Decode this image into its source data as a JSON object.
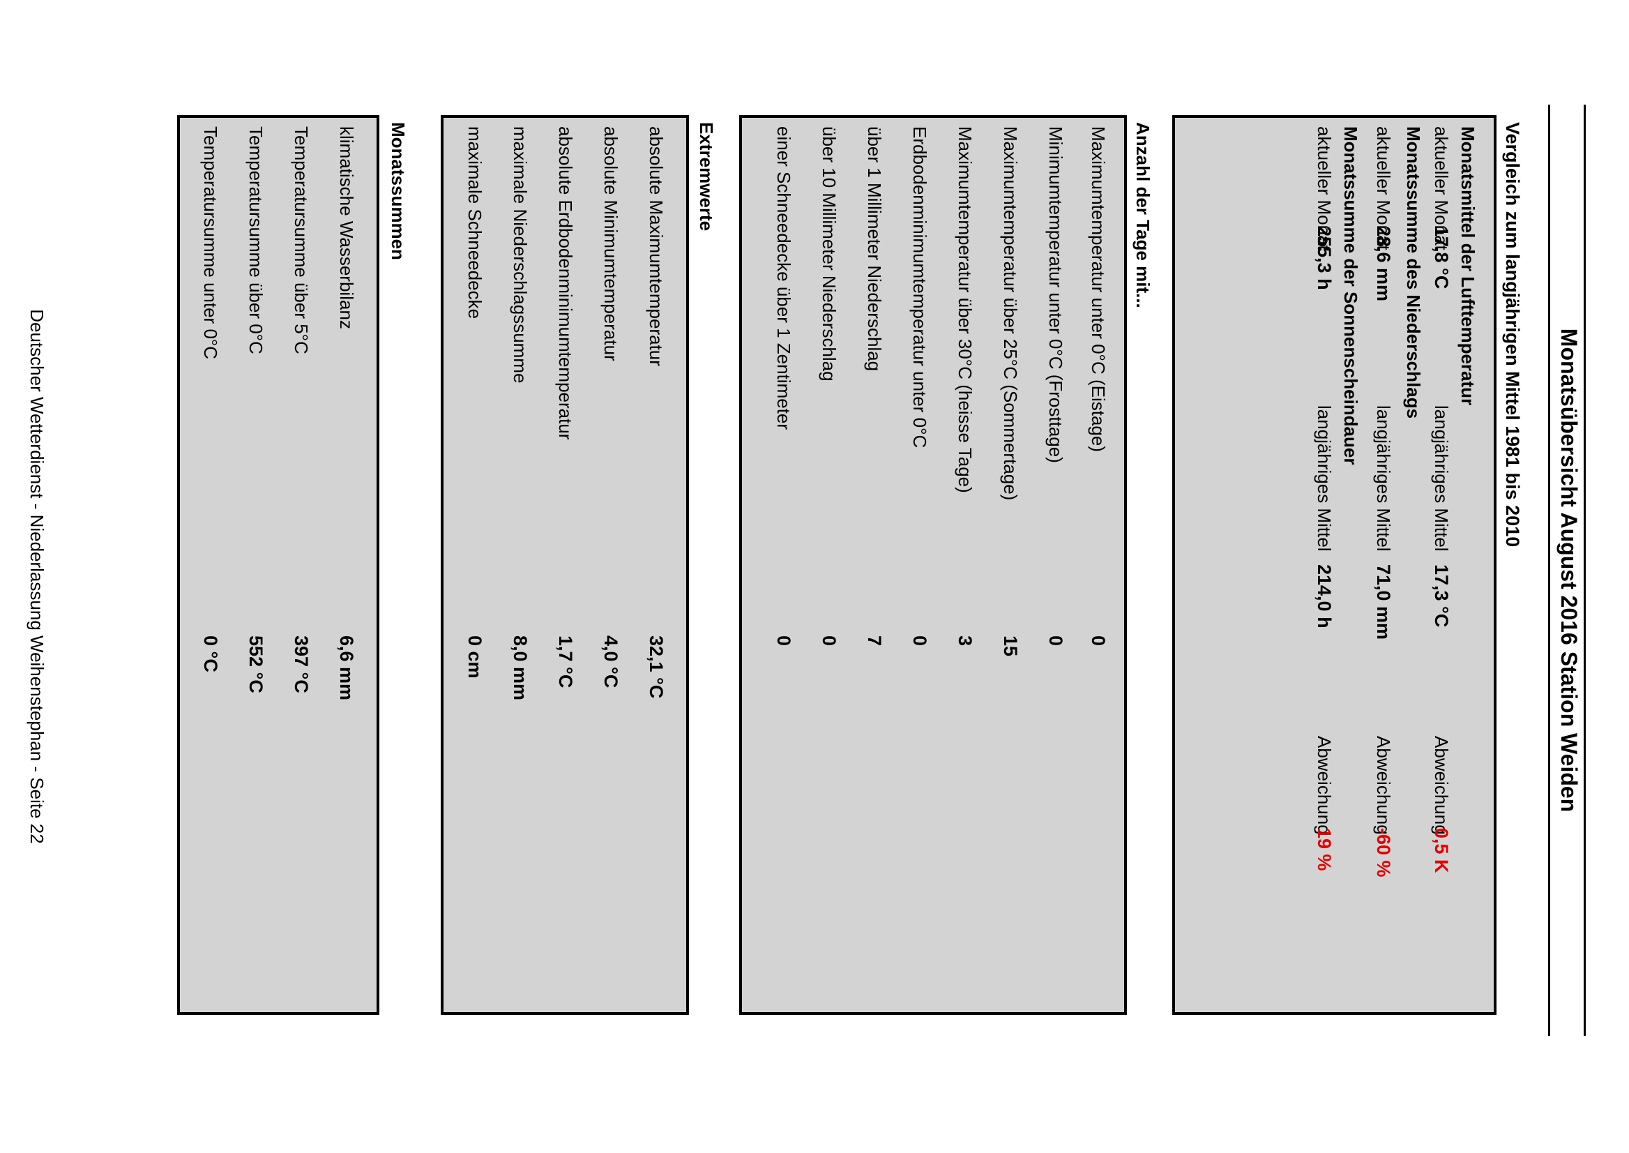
{
  "title": "Monatsübersicht August 2016 Station Weiden",
  "comparison": {
    "heading": "Vergleich zum langjährigen Mittel 1981 bis 2010",
    "groups": [
      {
        "heading": "Monatsmittel der Lufttemperatur",
        "current_label": "aktueller Monat",
        "current_value": "17,8 °C",
        "mean_label": "langjähriges Mittel",
        "mean_value": "17,3 °C",
        "dev_label": "Abweichung",
        "dev_value": "0,5  K"
      },
      {
        "heading": "Monatssumme des Niederschlags",
        "current_label": "aktueller Monat",
        "current_value": "28,6 mm",
        "mean_label": "langjähriges Mittel",
        "mean_value": "71,0 mm",
        "dev_label": "Abweichung",
        "dev_value": "-60 %"
      },
      {
        "heading": "Monatssumme der Sonnenscheindauer",
        "current_label": "aktueller Monat",
        "current_value": "255,3 h",
        "mean_label": "langjähriges Mittel",
        "mean_value": "214,0 h",
        "dev_label": "Abweichung",
        "dev_value": "19 %"
      }
    ]
  },
  "days": {
    "heading": "Anzahl der Tage mit...",
    "rows": [
      {
        "label": "Maximumtemperatur unter 0°C (Eistage)",
        "value": "0"
      },
      {
        "label": "Minimumtemperatur unter 0°C (Frosttage)",
        "value": "0"
      },
      {
        "label": "Maximumtemperatur über 25°C (Sommertage)",
        "value": "15"
      },
      {
        "label": "Maximumtemperatur über 30°C (heisse Tage)",
        "value": "3"
      },
      {
        "label": "Erdbodenminimumtemperatur unter 0°C",
        "value": "0"
      },
      {
        "label": "über 1 Millimeter Niederschlag",
        "value": "7"
      },
      {
        "label": "über 10 Millimeter Niederschlag",
        "value": "0"
      },
      {
        "label": "einer Schneedecke über 1 Zentimeter",
        "value": "0"
      }
    ]
  },
  "extremes": {
    "heading": "Extremwerte",
    "rows": [
      {
        "label": "absolute Maximumtemperatur",
        "value": "32,1  °C"
      },
      {
        "label": "absolute Minimumtemperatur",
        "value": "4,0  °C"
      },
      {
        "label": "absolute Erdbodenminimumtemperatur",
        "value": "1,7  °C"
      },
      {
        "label": "maximale Niederschlagssumme",
        "value": "8,0  mm"
      },
      {
        "label": "maximale Schneedecke",
        "value": "0 cm"
      }
    ]
  },
  "sums": {
    "heading": "Monatssummen",
    "rows": [
      {
        "label": "klimatische Wasserbilanz",
        "value": "6,6  mm"
      },
      {
        "label": "Temperatursumme über 5°C",
        "value": "397  °C"
      },
      {
        "label": "Temperatursumme über 0°C",
        "value": "552  °C"
      },
      {
        "label": "Temperatursumme unter 0°C",
        "value": "0  °C"
      }
    ]
  },
  "footer": "Deutscher Wetterdienst - Niederlassung Weihenstephan - Seite 22"
}
